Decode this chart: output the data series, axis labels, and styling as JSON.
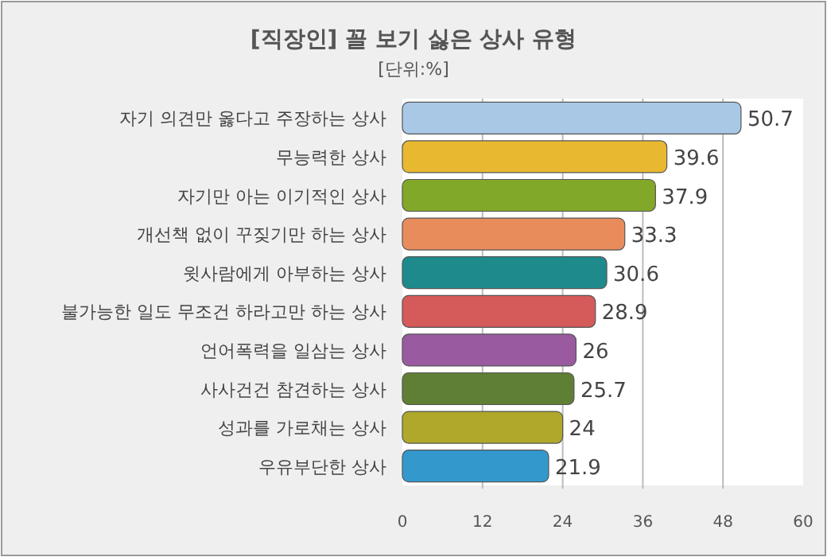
{
  "chart_data": {
    "type": "bar",
    "orientation": "horizontal",
    "title": "[직장인] 꼴 보기 싫은 상사 유형",
    "subtitle": "[단위:%]",
    "categories": [
      "자기 의견만 옳다고 주장하는 상사",
      "무능력한 상사",
      "자기만 아는 이기적인 상사",
      "개선책 없이 꾸짖기만 하는 상사",
      "윗사람에게 아부하는 상사",
      "불가능한 일도 무조건 하라고만 하는 상사",
      "언어폭력을 일삼는 상사",
      "사사건건 참견하는 상사",
      "성과를 가로채는 상사",
      "우유부단한 상사"
    ],
    "values": [
      50.7,
      39.6,
      37.9,
      33.3,
      30.6,
      28.9,
      26,
      25.7,
      24,
      21.9
    ],
    "colors": [
      "#a9c8e6",
      "#e8b830",
      "#82a82a",
      "#e98c5c",
      "#1f8a8c",
      "#d55a5a",
      "#9a5aa0",
      "#5f7f35",
      "#b0a82a",
      "#3399cc"
    ],
    "xlim": [
      0,
      60
    ],
    "xticks": [
      0,
      12,
      24,
      36,
      48,
      60
    ],
    "grid": "x",
    "data_labels": true
  }
}
